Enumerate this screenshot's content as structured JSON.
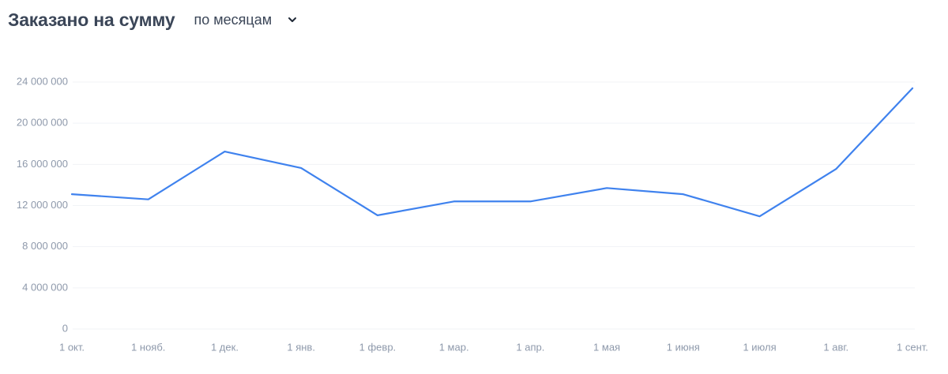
{
  "chart_data": {
    "type": "line",
    "title": "Заказано на сумму",
    "categories": [
      "1 окт.",
      "1 нояб.",
      "1 дек.",
      "1 янв.",
      "1 февр.",
      "1 мар.",
      "1 апр.",
      "1 мая",
      "1 июня",
      "1 июля",
      "1 авг.",
      "1 сент."
    ],
    "values": [
      13100000,
      12600000,
      17250000,
      15650000,
      11050000,
      12400000,
      12400000,
      13700000,
      13100000,
      10950000,
      15550000,
      23400000
    ],
    "color": "#3f82ee",
    "ylim": [
      0,
      24000000
    ],
    "yticks": [
      0,
      {
        "value": 4000000,
        "label": "4 000 000"
      },
      {
        "value": 8000000,
        "label": "8 000 000"
      },
      {
        "value": 12000000,
        "label": "12 000 000"
      },
      {
        "value": 16000000,
        "label": "16 000 000"
      },
      {
        "value": 20000000,
        "label": "20 000 000"
      },
      {
        "value": 24000000,
        "label": "24 000 000"
      }
    ],
    "grid": true
  },
  "controls": {
    "period": "по месяцам"
  }
}
